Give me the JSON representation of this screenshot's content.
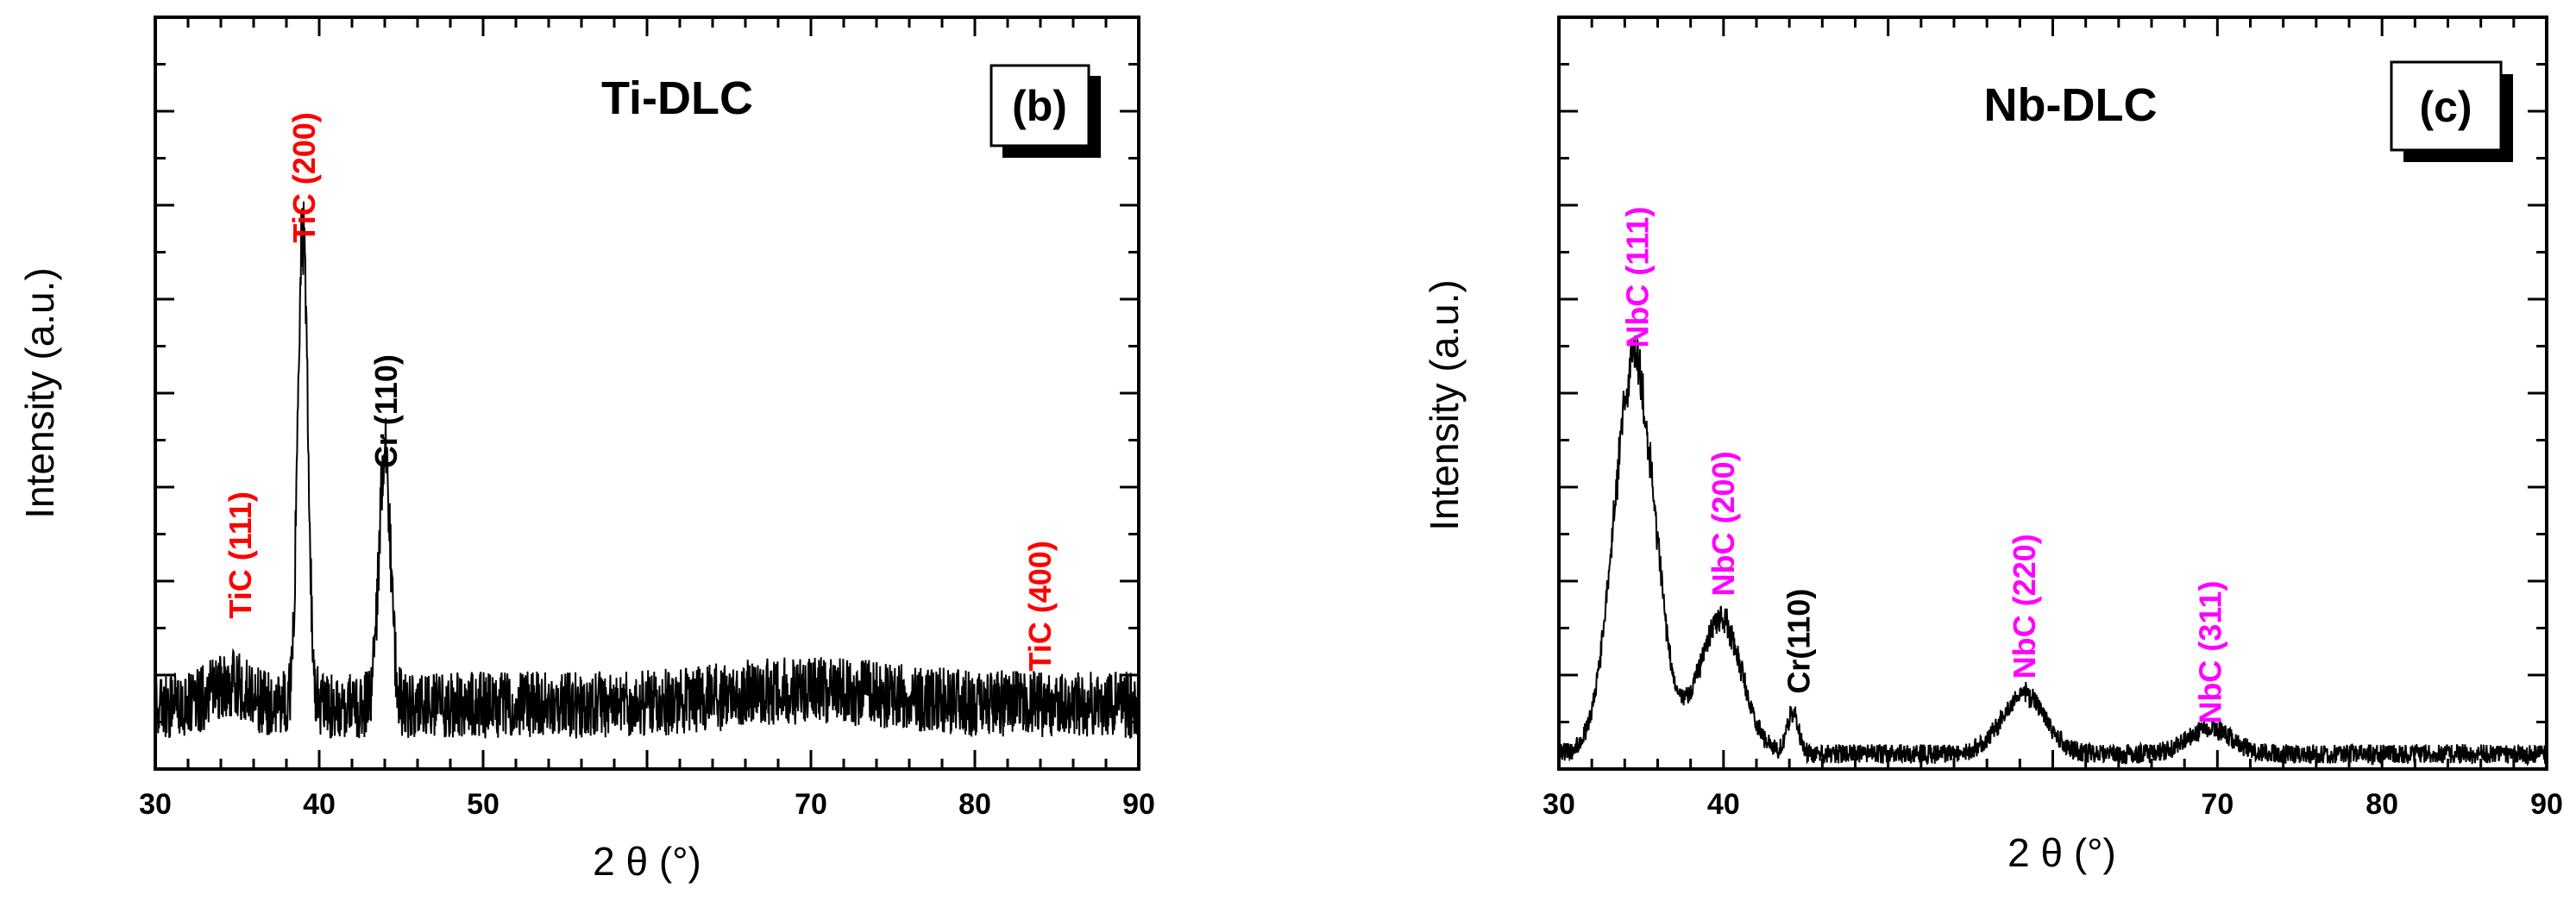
{
  "colors": {
    "line": "#000000",
    "tic_label": "#ff0000",
    "nbc_label": "#ff00ff",
    "cr_label": "#000000"
  },
  "chart_data": [
    {
      "type": "line",
      "panel_label": "(b)",
      "title": "Ti-DLC",
      "xlabel": "2 θ (°)",
      "ylabel": "Intensity (a.u.)",
      "xlim": [
        30,
        90
      ],
      "ylim": [
        0,
        100
      ],
      "xticks": [
        30,
        40,
        50,
        70,
        80,
        90
      ],
      "xtick_labels": [
        "30",
        "40",
        "50",
        "70",
        "80",
        "90"
      ],
      "yticks_labeled": false,
      "series": [
        {
          "name": "Ti-DLC",
          "baseline": 8.5,
          "noise": 4.5,
          "peaks": [
            {
              "x": 39.0,
              "height": 65,
              "width": 0.3
            },
            {
              "x": 44.0,
              "height": 34,
              "width": 0.35
            },
            {
              "x": 34.5,
              "height": 3,
              "width": 1.0
            },
            {
              "x": 70.0,
              "height": 2,
              "width": 5.0
            }
          ],
          "points": 2400,
          "seed": 7
        }
      ],
      "annotations": [
        {
          "text": "TiC (111)",
          "x": 35.2,
          "y": 20,
          "color": "#ff0000"
        },
        {
          "text": "TiC (200)",
          "x": 39.1,
          "y": 70,
          "color": "#ff0000"
        },
        {
          "text": "Cr (110)",
          "x": 44.1,
          "y": 40,
          "color": "#000000"
        },
        {
          "text": "TiC (400)",
          "x": 84.0,
          "y": 13,
          "color": "#ff0000"
        }
      ]
    },
    {
      "type": "line",
      "panel_label": "(c)",
      "title": "Nb-DLC",
      "xlabel": "2 θ (°)",
      "ylabel": "Intensity (a.u.)",
      "xlim": [
        30,
        90
      ],
      "ylim": [
        0,
        100
      ],
      "xticks": [
        30,
        40,
        70,
        80,
        90
      ],
      "xtick_labels": [
        "30",
        "40",
        "70",
        "80",
        "90"
      ],
      "yticks_labeled": false,
      "series": [
        {
          "name": "Nb-DLC",
          "baseline": 2,
          "noise": 1.3,
          "peaks": [
            {
              "x": 34.6,
              "height": 52,
              "width": 1.25
            },
            {
              "x": 39.8,
              "height": 18,
              "width": 1.3
            },
            {
              "x": 44.2,
              "height": 5.5,
              "width": 0.35
            },
            {
              "x": 58.2,
              "height": 8,
              "width": 1.3
            },
            {
              "x": 69.5,
              "height": 3.5,
              "width": 1.3
            }
          ],
          "points": 2400,
          "seed": 13
        }
      ],
      "annotations": [
        {
          "text": "NbC (111)",
          "x": 34.8,
          "y": 56,
          "color": "#ff00ff"
        },
        {
          "text": "NbC (200)",
          "x": 40.0,
          "y": 23,
          "color": "#ff00ff"
        },
        {
          "text": "Cr(110)",
          "x": 44.6,
          "y": 10,
          "color": "#000000"
        },
        {
          "text": "NbC (220)",
          "x": 58.3,
          "y": 12,
          "color": "#ff00ff"
        },
        {
          "text": "NbC (311)",
          "x": 69.6,
          "y": 6,
          "color": "#ff00ff"
        }
      ]
    }
  ]
}
